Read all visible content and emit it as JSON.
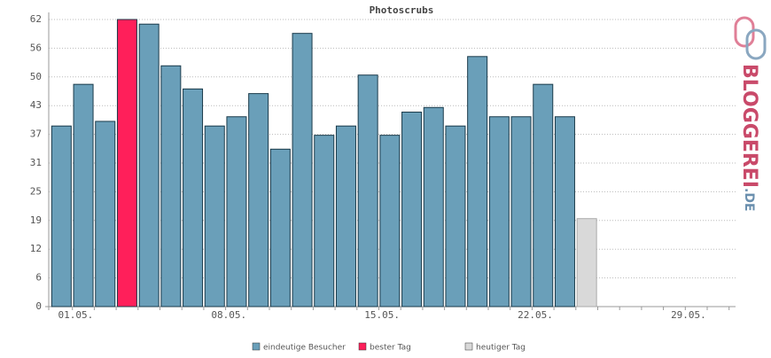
{
  "chart_data": {
    "type": "bar",
    "title": "Photoscrubs",
    "categories": [
      "01.05.",
      null,
      null,
      null,
      null,
      null,
      null,
      "08.05.",
      null,
      null,
      null,
      null,
      null,
      null,
      "15.05.",
      null,
      null,
      null,
      null,
      null,
      null,
      "22.05.",
      null,
      null,
      null,
      null,
      null,
      null,
      "29.05.",
      null,
      null
    ],
    "series": [
      {
        "name": "eindeutige Besucher",
        "color": "#6a9fb9",
        "values": [
          39,
          48,
          40,
          null,
          61,
          52,
          47,
          39,
          41,
          46,
          34,
          59,
          37,
          39,
          50,
          37,
          42,
          43,
          39,
          54,
          41,
          41,
          48,
          41,
          null,
          null,
          null,
          null,
          null,
          null,
          null
        ]
      },
      {
        "name": "bester Tag",
        "color": "#ff1f5a",
        "values": [
          null,
          null,
          null,
          62,
          null,
          null,
          null,
          null,
          null,
          null,
          null,
          null,
          null,
          null,
          null,
          null,
          null,
          null,
          null,
          null,
          null,
          null,
          null,
          null,
          null,
          null,
          null,
          null,
          null,
          null,
          null
        ]
      },
      {
        "name": "heutiger Tag",
        "color": "#d9d9d9",
        "values": [
          null,
          null,
          null,
          null,
          null,
          null,
          null,
          null,
          null,
          null,
          null,
          null,
          null,
          null,
          null,
          null,
          null,
          null,
          null,
          null,
          null,
          null,
          null,
          null,
          19,
          null,
          null,
          null,
          null,
          null,
          null
        ]
      }
    ],
    "ylim": [
      0,
      62
    ],
    "yticks": [
      0,
      {
        "value": 6.2,
        "label": "6"
      },
      {
        "value": 12.4,
        "label": "12"
      },
      {
        "value": 18.6,
        "label": "19"
      },
      {
        "value": 24.8,
        "label": "25"
      },
      31,
      {
        "value": 37.2,
        "label": "37"
      },
      {
        "value": 43.4,
        "label": "43"
      },
      {
        "value": 49.6,
        "label": "50"
      },
      {
        "value": 55.8,
        "label": "56"
      },
      62
    ],
    "grid": true,
    "watermark": {
      "main": "BLOGGEREI",
      "suffix": ".DE"
    }
  }
}
